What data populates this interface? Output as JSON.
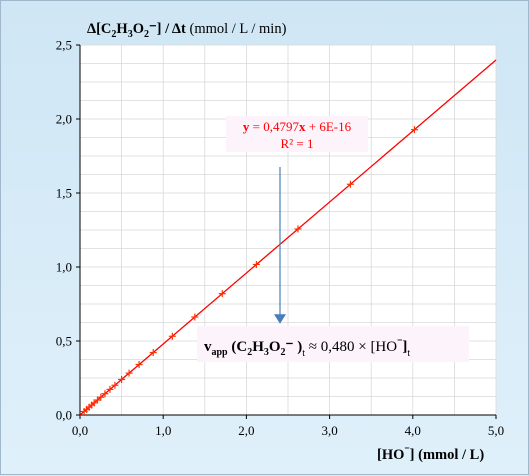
{
  "colors": {
    "background": "#d9ecf7",
    "plot_area": "#ffffff",
    "grid": "#d9d9d9",
    "line": "#ff0000",
    "marker": "#ff3300",
    "equation_text": "#ff0000",
    "arrow": "#4a7ebb",
    "label_box": "#fdf3fb"
  },
  "chart_data": {
    "type": "scatter",
    "ylabel_parts": [
      "Δ[C",
      "2",
      "H",
      "3",
      "O",
      "2",
      "⁻] / Δt",
      " (mmol / L / min)"
    ],
    "xlabel_parts": [
      "[HO",
      "⁻",
      "] (mmol / L)"
    ],
    "x_ticks": [
      "0,0",
      "1,0",
      "2,0",
      "3,0",
      "4,0",
      "5,0"
    ],
    "y_ticks": [
      "0,0",
      "0,5",
      "1,0",
      "1,5",
      "2,0",
      "2,5"
    ],
    "xlim": [
      0,
      5
    ],
    "ylim": [
      0,
      2.5
    ],
    "grid": true,
    "marker": "cross",
    "series": [
      {
        "x": [
          0.05,
          0.08,
          0.11,
          0.14,
          0.17,
          0.21,
          0.25,
          0.3,
          0.36,
          0.42,
          0.5,
          0.59,
          0.71,
          0.88,
          1.11,
          1.38,
          1.71,
          2.12,
          2.62,
          3.25,
          4.02
        ],
        "y": [
          0.024,
          0.038,
          0.053,
          0.067,
          0.082,
          0.101,
          0.12,
          0.144,
          0.173,
          0.201,
          0.24,
          0.283,
          0.341,
          0.422,
          0.532,
          0.662,
          0.82,
          1.017,
          1.257,
          1.559,
          1.928
        ]
      }
    ],
    "trendline": {
      "slope": 0.4797,
      "intercept": 0,
      "x_range": [
        0,
        5
      ]
    },
    "trendline_label": {
      "equation_parts": [
        "y",
        " = 0,4797",
        "x",
        " + 6E-16"
      ],
      "r2": "R² = 1"
    },
    "annotation_parts": [
      "v",
      "app",
      " (C",
      "2",
      "H",
      "3",
      "O",
      "2",
      "⁻ )",
      "t",
      " ≈ 0,480 × [HO",
      "⁻",
      "]",
      "t"
    ]
  }
}
